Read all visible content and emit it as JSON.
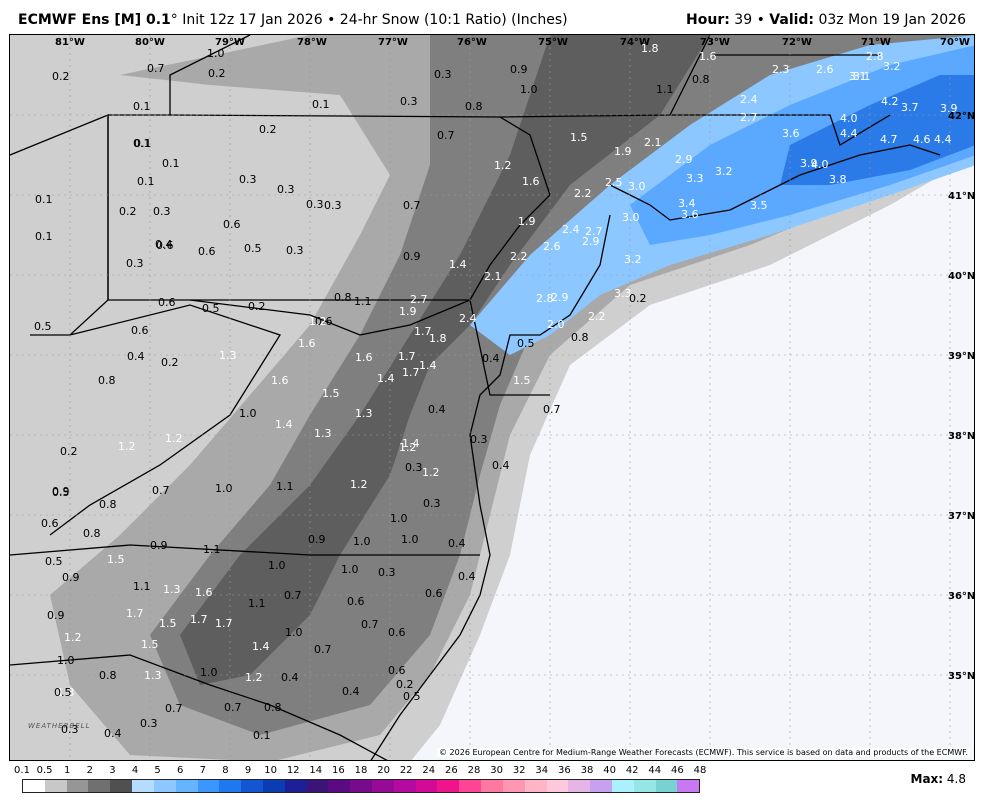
{
  "header": {
    "model": "ECMWF Ens [M] 0.1",
    "degree_sign": "°",
    "init": " Init 12z 17 Jan 2026",
    "separator": " • ",
    "product": "24-hr Snow (10:1 Ratio) (Inches)",
    "hour_label": "Hour:",
    "hour_value": " 39",
    "valid_label": "Valid:",
    "valid_value": " 03z Mon 19 Jan 2026"
  },
  "map": {
    "longitude_labels": [
      "81°W",
      "80°W",
      "79°W",
      "78°W",
      "77°W",
      "76°W",
      "75°W",
      "74°W",
      "73°W",
      "72°W",
      "71°W",
      "70°W"
    ],
    "latitude_labels": [
      "42°N",
      "41°N",
      "40°N",
      "39°N",
      "38°N",
      "37°N",
      "36°N",
      "35°N"
    ],
    "snow_values": [
      "0.2",
      "0.7",
      "1.0",
      "0.2",
      "0.1",
      "0.1",
      "0.3",
      "0.9",
      "1.0",
      "0.8",
      "1.1",
      "1.6",
      "1.8",
      "2.3",
      "2.6",
      "2.8",
      "3.2",
      "3.1",
      "3.1",
      "0.1",
      "0.2",
      "0.3",
      "0.8",
      "0.7",
      "2.4",
      "2.7",
      "4.2",
      "3.7",
      "3.9",
      "0.1",
      "0.1",
      "1.5",
      "1.9",
      "2.1",
      "3.6",
      "4.0",
      "4.4",
      "4.7",
      "4.6",
      "4.4",
      "0.1",
      "0.3",
      "0.3",
      "0.3",
      "0.3",
      "0.6",
      "1.2",
      "1.6",
      "2.5",
      "2.9",
      "3.3",
      "3.2",
      "3.9",
      "4.0",
      "3.8",
      "0.1",
      "0.2",
      "0.3",
      "0.7",
      "2.2",
      "3.0",
      "3.4",
      "3.5",
      "0.1",
      "0.6",
      "1.9",
      "3.0",
      "3.6",
      "0.4",
      "0.6",
      "0.5",
      "0.3",
      "0.9",
      "2.6",
      "2.4",
      "2.7",
      "2.9",
      "0.3",
      "1.4",
      "2.1",
      "2.2",
      "3.2",
      "0.6",
      "0.5",
      "0.2",
      "0.6",
      "0.8",
      "1.1",
      "2.7",
      "2.8",
      "2.9",
      "3.3",
      "0.2",
      "0.5",
      "0.6",
      "1.2",
      "1.9",
      "2.4",
      "2.2",
      "2.0",
      "0.8",
      "1.6",
      "1.7",
      "1.8",
      "0.5",
      "0.4",
      "0.2",
      "1.3",
      "1.6",
      "1.7",
      "1.7",
      "0.4",
      "0.8",
      "1.6",
      "1.4",
      "1.4",
      "1.5",
      "1.5",
      "0.7",
      "1.0",
      "1.4",
      "1.3",
      "0.4",
      "1.2",
      "1.3",
      "1.4",
      "0.3",
      "0.2",
      "1.2",
      "1.2",
      "0.3",
      "0.5",
      "0.8",
      "0.7",
      "1.0",
      "1.1",
      "0.4",
      "0.9",
      "1.2",
      "1.2",
      "0.3",
      "0.6",
      "0.8",
      "0.9",
      "1.1",
      "1.0",
      "0.9",
      "1.0",
      "1.0",
      "0.4",
      "0.5",
      "1.5",
      "1.0",
      "1.0",
      "0.3",
      "0.9",
      "1.1",
      "1.3",
      "1.6",
      "0.7",
      "0.4",
      "0.9",
      "1.7",
      "1.1",
      "0.6",
      "0.6",
      "1.2",
      "1.5",
      "1.7",
      "1.0",
      "0.7",
      "0.6",
      "1.0",
      "1.5",
      "1.7",
      "1.4",
      "0.7",
      "1.3",
      "1.0",
      "0.8",
      "1.3",
      "1.2",
      "0.4",
      "0.6",
      "0.5",
      "0.2",
      "0.5",
      "0.7",
      "0.7",
      "0.8",
      "0.4",
      "0.3",
      "0.4",
      "0.3",
      "0.1"
    ]
  },
  "colorbar": {
    "ticks": [
      "0.1",
      "0.5",
      "1",
      "2",
      "3",
      "4",
      "5",
      "6",
      "7",
      "8",
      "9",
      "10",
      "12",
      "14",
      "16",
      "18",
      "20",
      "22",
      "24",
      "26",
      "28",
      "30",
      "32",
      "34",
      "36",
      "38",
      "40",
      "42",
      "44",
      "46",
      "48"
    ],
    "colors": [
      "#ffffff",
      "#c8c8c8",
      "#969696",
      "#707070",
      "#505050",
      "#b4dcff",
      "#8cc8ff",
      "#64b4ff",
      "#3c96ff",
      "#1e78f0",
      "#1455d2",
      "#0a3cb4",
      "#1e1e96",
      "#3c1478",
      "#5a0a82",
      "#780a8c",
      "#960a96",
      "#b40aa0",
      "#d20a96",
      "#f0148c",
      "#ff4696",
      "#ff78a0",
      "#ff96b4",
      "#ffb4c8",
      "#ffc8dc",
      "#e6b4e6",
      "#c8a0f0",
      "#aaf0ff",
      "#96e6e6",
      "#78d2d2",
      "#c878f0"
    ],
    "max_label": "Max:",
    "max_value": " 4.8"
  },
  "copyright": "© 2026 European Centre for Medium-Range Weather Forecasts (ECMWF). This service is based on data and products of the ECMWF.",
  "logo": "WEATHERBELL"
}
